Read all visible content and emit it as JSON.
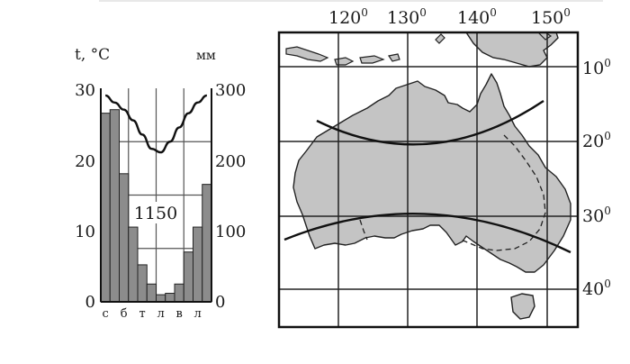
{
  "chart_data": [
    {
      "type": "bar",
      "ylabel_left": "t, °C",
      "ylabel_right": "мм",
      "left_ticks": [
        "30",
        "20",
        "10",
        "0"
      ],
      "right_ticks": [
        "300",
        "200",
        "100",
        "0"
      ],
      "ylim_left": [
        0,
        30
      ],
      "ylim_right": [
        0,
        300
      ],
      "categories": [
        "с",
        "",
        "б",
        "",
        "т",
        "",
        "л",
        "",
        "в",
        "",
        "л",
        ""
      ],
      "precipitation_mm": [
        265,
        270,
        180,
        105,
        52,
        25,
        10,
        12,
        25,
        70,
        105,
        165
      ],
      "temperature_c": [
        29,
        28,
        27,
        25.5,
        23.5,
        21.5,
        21,
        22.5,
        24.5,
        26.5,
        28,
        29
      ],
      "annotation": "1150",
      "grid": true
    },
    {
      "type": "map",
      "lon_labels": [
        "120",
        "130",
        "140",
        "150"
      ],
      "lat_labels": [
        "10",
        "20",
        "30",
        "40"
      ],
      "degree_symbol": "0"
    }
  ]
}
